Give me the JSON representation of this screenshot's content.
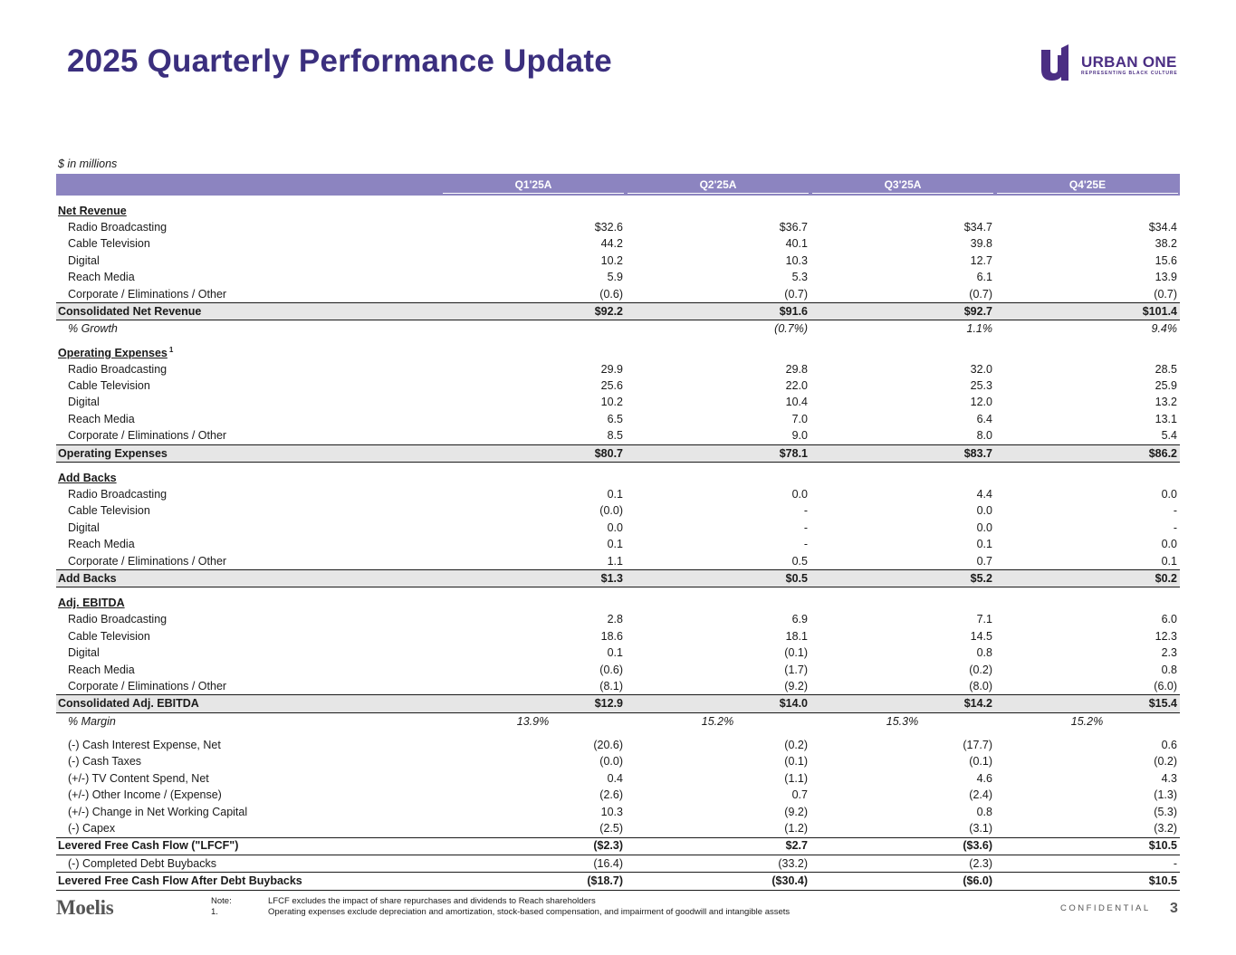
{
  "header": {
    "title": "2025 Quarterly Performance Update",
    "logo": {
      "name": "URBAN ONE",
      "tagline": "REPRESENTING BLACK CULTURE",
      "mark_color": "#4b2e83"
    }
  },
  "table": {
    "units": "$ in millions",
    "columns": [
      "Q1'25A",
      "Q2'25A",
      "Q3'25A",
      "Q4'25E"
    ],
    "header_color": "#8c84c0",
    "net_revenue": {
      "title": "Net Revenue",
      "rows": [
        {
          "label": "Radio Broadcasting",
          "values": [
            "$32.6",
            "$36.7",
            "$34.7",
            "$34.4"
          ]
        },
        {
          "label": "Cable Television",
          "values": [
            "44.2",
            "40.1",
            "39.8",
            "38.2"
          ]
        },
        {
          "label": "Digital",
          "values": [
            "10.2",
            "10.3",
            "12.7",
            "15.6"
          ]
        },
        {
          "label": "Reach Media",
          "values": [
            "5.9",
            "5.3",
            "6.1",
            "13.9"
          ]
        },
        {
          "label": "Corporate / Eliminations / Other",
          "values": [
            "(0.6)",
            "(0.7)",
            "(0.7)",
            "(0.7)"
          ]
        }
      ],
      "total": {
        "label": "Consolidated Net Revenue",
        "values": [
          "$92.2",
          "$91.6",
          "$92.7",
          "$101.4"
        ]
      },
      "growth": {
        "label": "% Growth",
        "values": [
          "",
          "(0.7%)",
          "1.1%",
          "9.4%"
        ]
      }
    },
    "operating_expenses": {
      "title": "Operating Expenses",
      "footnote": "1",
      "rows": [
        {
          "label": "Radio Broadcasting",
          "values": [
            "29.9",
            "29.8",
            "32.0",
            "28.5"
          ]
        },
        {
          "label": "Cable Television",
          "values": [
            "25.6",
            "22.0",
            "25.3",
            "25.9"
          ]
        },
        {
          "label": "Digital",
          "values": [
            "10.2",
            "10.4",
            "12.0",
            "13.2"
          ]
        },
        {
          "label": "Reach Media",
          "values": [
            "6.5",
            "7.0",
            "6.4",
            "13.1"
          ]
        },
        {
          "label": "Corporate / Eliminations / Other",
          "values": [
            "8.5",
            "9.0",
            "8.0",
            "5.4"
          ]
        }
      ],
      "total": {
        "label": "Operating Expenses",
        "values": [
          "$80.7",
          "$78.1",
          "$83.7",
          "$86.2"
        ]
      }
    },
    "add_backs": {
      "title": "Add Backs",
      "rows": [
        {
          "label": "Radio Broadcasting",
          "values": [
            "0.1",
            "0.0",
            "4.4",
            "0.0"
          ]
        },
        {
          "label": "Cable Television",
          "values": [
            "(0.0)",
            "-",
            "0.0",
            "-"
          ]
        },
        {
          "label": "Digital",
          "values": [
            "0.0",
            "-",
            "0.0",
            "-"
          ]
        },
        {
          "label": "Reach Media",
          "values": [
            "0.1",
            "-",
            "0.1",
            "0.0"
          ]
        },
        {
          "label": "Corporate / Eliminations / Other",
          "values": [
            "1.1",
            "0.5",
            "0.7",
            "0.1"
          ]
        }
      ],
      "total": {
        "label": "Add Backs",
        "values": [
          "$1.3",
          "$0.5",
          "$5.2",
          "$0.2"
        ]
      }
    },
    "adj_ebitda": {
      "title": "Adj. EBITDA",
      "rows": [
        {
          "label": "Radio Broadcasting",
          "values": [
            "2.8",
            "6.9",
            "7.1",
            "6.0"
          ]
        },
        {
          "label": "Cable Television",
          "values": [
            "18.6",
            "18.1",
            "14.5",
            "12.3"
          ]
        },
        {
          "label": "Digital",
          "values": [
            "0.1",
            "(0.1)",
            "0.8",
            "2.3"
          ]
        },
        {
          "label": "Reach Media",
          "values": [
            "(0.6)",
            "(1.7)",
            "(0.2)",
            "0.8"
          ]
        },
        {
          "label": "Corporate / Eliminations / Other",
          "values": [
            "(8.1)",
            "(9.2)",
            "(8.0)",
            "(6.0)"
          ]
        }
      ],
      "total": {
        "label": "Consolidated Adj. EBITDA",
        "values": [
          "$12.9",
          "$14.0",
          "$14.2",
          "$15.4"
        ]
      },
      "margin": {
        "label": "% Margin",
        "values": [
          "13.9%",
          "15.2%",
          "15.3%",
          "15.2%"
        ]
      }
    },
    "cash_flow": {
      "rows": [
        {
          "label": "(-) Cash Interest Expense, Net",
          "values": [
            "(20.6)",
            "(0.2)",
            "(17.7)",
            "0.6"
          ]
        },
        {
          "label": "(-) Cash Taxes",
          "values": [
            "(0.0)",
            "(0.1)",
            "(0.1)",
            "(0.2)"
          ]
        },
        {
          "label": "(+/-) TV Content Spend, Net",
          "values": [
            "0.4",
            "(1.1)",
            "4.6",
            "4.3"
          ]
        },
        {
          "label": "(+/-) Other Income / (Expense)",
          "values": [
            "(2.6)",
            "0.7",
            "(2.4)",
            "(1.3)"
          ]
        },
        {
          "label": "(+/-) Change in Net Working Capital",
          "values": [
            "10.3",
            "(9.2)",
            "0.8",
            "(5.3)"
          ]
        },
        {
          "label": "(-) Capex",
          "values": [
            "(2.5)",
            "(1.2)",
            "(3.1)",
            "(3.2)"
          ]
        }
      ],
      "lfcf": {
        "label": "Levered Free Cash Flow (\"LFCF\")",
        "values": [
          "($2.3)",
          "$2.7",
          "($3.6)",
          "$10.5"
        ]
      },
      "buybacks": {
        "label": "(-) Completed Debt Buybacks",
        "values": [
          "(16.4)",
          "(33.2)",
          "(2.3)",
          "-"
        ]
      },
      "lfcf_after": {
        "label": "Levered Free Cash Flow After Debt Buybacks",
        "values": [
          "($18.7)",
          "($30.4)",
          "($6.0)",
          "$10.5"
        ]
      }
    }
  },
  "footer": {
    "brand": "Moelis",
    "notes": [
      {
        "key": "Note:",
        "text": "LFCF excludes the impact of share repurchases and dividends to Reach shareholders"
      },
      {
        "key": "1.",
        "text": "Operating expenses exclude depreciation and amortization, stock-based compensation, and impairment of goodwill and intangible assets"
      }
    ],
    "confidential": "CONFIDENTIAL",
    "page": "3"
  }
}
